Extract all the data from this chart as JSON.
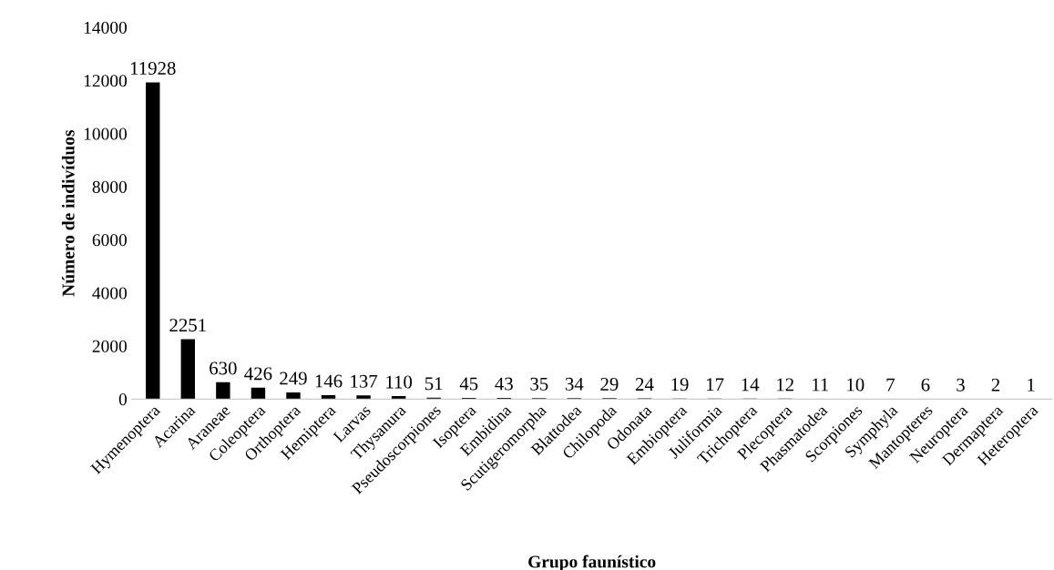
{
  "chart_data": {
    "type": "bar",
    "xlabel": "Grupo faunístico",
    "ylabel": "Número de indivíduos",
    "categories": [
      "Hymenoptera",
      "Acarina",
      "Araneae",
      "Coleoptera",
      "Orthoptera",
      "Hemiptera",
      "Larvas",
      "Thysanura",
      "Pseudoscorpiones",
      "Isoptera",
      "Embidina",
      "Scutigeromorpha",
      "Blattodea",
      "Chilopoda",
      "Odonata",
      "Embioptera",
      "Juliformia",
      "Trichoptera",
      "Plecoptera",
      "Phasmatodea",
      "Scorpiones",
      "Symphyla",
      "Mantopteres",
      "Neuroptera",
      "Dermaptera",
      "Heteroptera"
    ],
    "values": [
      11928,
      2251,
      630,
      426,
      249,
      146,
      137,
      110,
      51,
      45,
      43,
      35,
      34,
      29,
      24,
      19,
      17,
      14,
      12,
      11,
      10,
      7,
      6,
      3,
      2,
      1
    ],
    "color": "#000000",
    "ylim": [
      0,
      14000
    ],
    "yticks": [
      0,
      2000,
      4000,
      6000,
      8000,
      10000,
      12000,
      14000
    ],
    "grid": false,
    "data_labels": true
  }
}
